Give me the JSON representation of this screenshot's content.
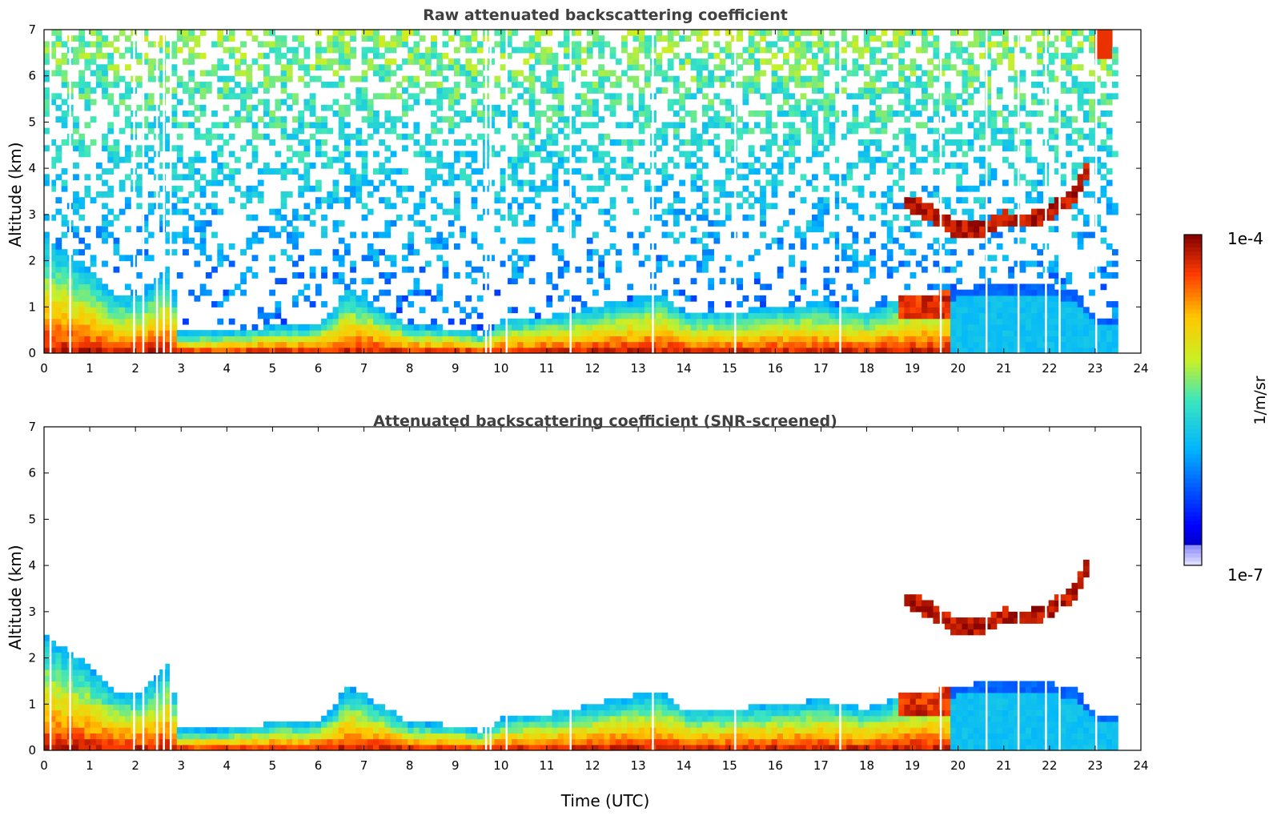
{
  "chart_data": [
    {
      "type": "heatmap",
      "title": "Raw attenuated backscattering coefficient",
      "xlabel": "",
      "ylabel": "Altitude (km)",
      "xlim": [
        0,
        24
      ],
      "ylim": [
        0,
        7
      ],
      "xticks": [
        "0",
        "1",
        "2",
        "3",
        "4",
        "5",
        "6",
        "7",
        "8",
        "9",
        "10",
        "11",
        "12",
        "13",
        "14",
        "15",
        "16",
        "17",
        "18",
        "19",
        "20",
        "21",
        "22",
        "23",
        "24"
      ],
      "yticks": [
        "0",
        "1",
        "2",
        "3",
        "4",
        "5",
        "6",
        "7"
      ],
      "screened": false,
      "colorbar_min": "1e-7",
      "colorbar_max": "1e-4",
      "colorbar_unit": "1/m/sr"
    },
    {
      "type": "heatmap",
      "title": "Attenuated backscattering coefficient (SNR-screened)",
      "xlabel": "Time (UTC)",
      "ylabel": "Altitude (km)",
      "xlim": [
        0,
        24
      ],
      "ylim": [
        0,
        7
      ],
      "xticks": [
        "0",
        "1",
        "2",
        "3",
        "4",
        "5",
        "6",
        "7",
        "8",
        "9",
        "10",
        "11",
        "12",
        "13",
        "14",
        "15",
        "16",
        "17",
        "18",
        "19",
        "20",
        "21",
        "22",
        "23",
        "24"
      ],
      "yticks": [
        "0",
        "1",
        "2",
        "3",
        "4",
        "5",
        "6",
        "7"
      ],
      "screened": true,
      "colorbar_min": "1e-7",
      "colorbar_max": "1e-4",
      "colorbar_unit": "1/m/sr"
    }
  ],
  "features": {
    "boundary_layer_top_km": [
      [
        0,
        2.5
      ],
      [
        0.5,
        2.2
      ],
      [
        1.0,
        1.8
      ],
      [
        1.5,
        1.3
      ],
      [
        2.0,
        1.2
      ],
      [
        2.5,
        1.6
      ],
      [
        2.8,
        1.9
      ],
      [
        2.9,
        0.45
      ],
      [
        4.0,
        0.45
      ],
      [
        5.0,
        0.6
      ],
      [
        6.0,
        0.6
      ],
      [
        6.4,
        1.0
      ],
      [
        6.6,
        1.4
      ],
      [
        7.0,
        1.2
      ],
      [
        7.5,
        0.9
      ],
      [
        8.0,
        0.6
      ],
      [
        9.0,
        0.55
      ],
      [
        9.6,
        0.4
      ],
      [
        10.0,
        0.7
      ],
      [
        11.0,
        0.8
      ],
      [
        12.0,
        1.0
      ],
      [
        13.0,
        1.2
      ],
      [
        13.5,
        1.3
      ],
      [
        14.0,
        0.9
      ],
      [
        15.0,
        0.9
      ],
      [
        16.0,
        1.0
      ],
      [
        17.0,
        1.1
      ],
      [
        18.0,
        0.9
      ],
      [
        18.5,
        1.1
      ],
      [
        19.0,
        1.3
      ],
      [
        19.5,
        1.3
      ],
      [
        20.0,
        1.4
      ],
      [
        21.0,
        1.5
      ],
      [
        22.0,
        1.45
      ],
      [
        22.6,
        1.3
      ],
      [
        23.0,
        0.8
      ],
      [
        23.5,
        0.7
      ]
    ],
    "elevated_layer_km": [
      [
        18.9,
        3.25
      ],
      [
        19.1,
        3.2
      ],
      [
        20.0,
        2.65
      ],
      [
        20.5,
        2.7
      ],
      [
        21.0,
        2.9
      ],
      [
        21.5,
        2.85
      ],
      [
        22.0,
        3.05
      ],
      [
        22.5,
        3.4
      ],
      [
        22.8,
        3.9
      ]
    ],
    "data_gaps_utc": [
      0.12,
      0.55,
      1.95,
      2.15,
      2.45,
      2.6,
      2.75,
      9.65,
      9.75,
      10.1,
      11.5,
      13.3,
      15.1,
      17.4,
      19.6,
      20.6,
      21.3,
      21.9,
      22.2,
      23.0
    ]
  }
}
